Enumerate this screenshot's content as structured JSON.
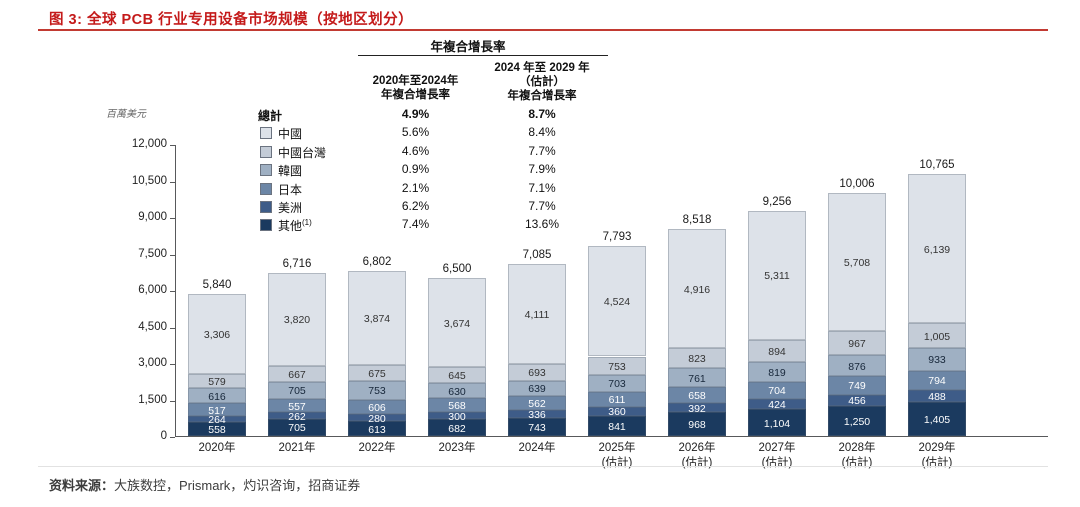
{
  "title": "图 3: 全球 PCB 行业专用设备市场规模（按地区划分）",
  "footer": {
    "label": "资料来源：",
    "text": "大族数控，Prismark，灼识咨询，招商证券"
  },
  "cagr_table": {
    "header": "年複合增長率",
    "col1_header": "2020年至2024年\n年複合增長率",
    "col2_header": "2024 年至 2029 年\n（估計）\n年複合增長率",
    "rows": [
      {
        "label": "總計",
        "bold": true,
        "col1": "4.9%",
        "col2": "8.7%"
      },
      {
        "label": "中國",
        "swatch": "#dde2e9",
        "col1": "5.6%",
        "col2": "8.4%"
      },
      {
        "label": "中國台灣",
        "swatch": "#c4ccd7",
        "col1": "4.6%",
        "col2": "7.7%"
      },
      {
        "label": "韓國",
        "swatch": "#9fb0c3",
        "col1": "0.9%",
        "col2": "7.9%"
      },
      {
        "label": "日本",
        "swatch": "#6c86a6",
        "col1": "2.1%",
        "col2": "7.1%"
      },
      {
        "label": "美洲",
        "swatch": "#3e5c88",
        "col1": "6.2%",
        "col2": "7.7%"
      },
      {
        "label": "其他",
        "sup": "(1)",
        "swatch": "#1b3a5f",
        "col1": "7.4%",
        "col2": "13.6%"
      }
    ]
  },
  "chart_data": {
    "type": "bar",
    "stacked": true,
    "title": "全球PCB行业专用设备市场规模（按地区划分）",
    "ylabel": "百萬美元",
    "ylim": [
      0,
      12000
    ],
    "ytick_step": 1500,
    "yticks": [
      "0",
      "1,500",
      "3,000",
      "4,500",
      "6,000",
      "7,500",
      "9,000",
      "10,500",
      "12,000"
    ],
    "grid": false,
    "legend_position": "upper-left",
    "categories": [
      "2020年",
      "2021年",
      "2022年",
      "2023年",
      "2024年",
      "2025年\n(估計)",
      "2026年\n(估計)",
      "2027年\n(估計)",
      "2028年\n(估計)",
      "2029年\n(估計)"
    ],
    "totals": [
      5840,
      6716,
      6802,
      6500,
      7085,
      7793,
      8518,
      9256,
      10006,
      10765
    ],
    "series": [
      {
        "name": "中國",
        "color": "#dde2e9",
        "label_color": "#333333",
        "values": [
          3306,
          3820,
          3874,
          3674,
          4111,
          4524,
          4916,
          5311,
          5708,
          6139
        ]
      },
      {
        "name": "中國台灣",
        "color": "#c4ccd7",
        "label_color": "#333333",
        "values": [
          579,
          667,
          675,
          645,
          693,
          753,
          823,
          894,
          967,
          1005
        ]
      },
      {
        "name": "韓國",
        "color": "#9fb0c3",
        "label_color": "#17273a",
        "values": [
          616,
          705,
          753,
          630,
          639,
          703,
          761,
          819,
          876,
          933
        ]
      },
      {
        "name": "日本",
        "color": "#6c86a6",
        "label_color": "#ffffff",
        "values": [
          517,
          557,
          606,
          568,
          562,
          611,
          658,
          704,
          749,
          794
        ]
      },
      {
        "name": "美洲",
        "color": "#3e5c88",
        "label_color": "#ffffff",
        "values": [
          264,
          262,
          280,
          300,
          336,
          360,
          392,
          424,
          456,
          488
        ]
      },
      {
        "name": "其他",
        "color": "#1b3a5f",
        "label_color": "#ffffff",
        "values": [
          558,
          705,
          613,
          682,
          743,
          841,
          968,
          1104,
          1250,
          1405
        ]
      }
    ]
  }
}
